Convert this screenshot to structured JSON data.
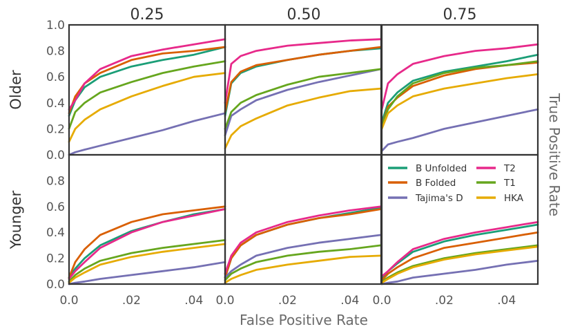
{
  "chart_data": {
    "type": "line",
    "xlabel": "False Positive Rate",
    "ylabel": "True Positive Rate",
    "column_titles": [
      "0.25",
      "0.50",
      "0.75"
    ],
    "row_labels": [
      "Older",
      "Younger"
    ],
    "xlim": [
      0,
      0.05
    ],
    "ylim": [
      0,
      1.0
    ],
    "x_ticks": [
      "0.0",
      ".02",
      ".04"
    ],
    "y_ticks_top": [
      "0.0",
      "0.2",
      "0.4",
      "0.6",
      "0.8",
      "1.0"
    ],
    "y_ticks_bottom": [
      "0.0",
      "0.2",
      "0.4",
      "0.6",
      "0.8"
    ],
    "grid": false,
    "legend_position": "bottom-right panel, top",
    "series_styles": [
      {
        "name": "B Unfolded",
        "color": "#1b9e77"
      },
      {
        "name": "B Folded",
        "color": "#d95f02"
      },
      {
        "name": "Tajima's D",
        "color": "#7570b3"
      },
      {
        "name": "T2",
        "color": "#e7298a"
      },
      {
        "name": "T1",
        "color": "#66a61e"
      },
      {
        "name": "HKA",
        "color": "#e6ab02"
      }
    ],
    "panels": [
      {
        "row": "Older",
        "col": "0.25",
        "series": [
          {
            "name": "B Unfolded",
            "x": [
              0,
              0.002,
              0.005,
              0.01,
              0.02,
              0.03,
              0.04,
              0.05
            ],
            "y": [
              0.3,
              0.42,
              0.52,
              0.6,
              0.68,
              0.73,
              0.77,
              0.83
            ]
          },
          {
            "name": "B Folded",
            "x": [
              0,
              0.002,
              0.005,
              0.01,
              0.02,
              0.03,
              0.04,
              0.05
            ],
            "y": [
              0.32,
              0.45,
              0.55,
              0.63,
              0.73,
              0.78,
              0.8,
              0.83
            ]
          },
          {
            "name": "Tajima's D",
            "x": [
              0,
              0.002,
              0.005,
              0.01,
              0.02,
              0.03,
              0.04,
              0.05
            ],
            "y": [
              0.0,
              0.02,
              0.04,
              0.07,
              0.13,
              0.19,
              0.26,
              0.32
            ]
          },
          {
            "name": "T2",
            "x": [
              0,
              0.002,
              0.005,
              0.01,
              0.02,
              0.03,
              0.04,
              0.05
            ],
            "y": [
              0.35,
              0.42,
              0.55,
              0.66,
              0.76,
              0.81,
              0.85,
              0.89
            ]
          },
          {
            "name": "T1",
            "x": [
              0,
              0.002,
              0.005,
              0.01,
              0.02,
              0.03,
              0.04,
              0.05
            ],
            "y": [
              0.2,
              0.33,
              0.4,
              0.48,
              0.56,
              0.63,
              0.68,
              0.72
            ]
          },
          {
            "name": "HKA",
            "x": [
              0,
              0.002,
              0.005,
              0.01,
              0.02,
              0.03,
              0.04,
              0.05
            ],
            "y": [
              0.1,
              0.2,
              0.27,
              0.35,
              0.45,
              0.53,
              0.6,
              0.63
            ]
          }
        ]
      },
      {
        "row": "Older",
        "col": "0.50",
        "series": [
          {
            "name": "B Unfolded",
            "x": [
              0,
              0.002,
              0.005,
              0.01,
              0.02,
              0.03,
              0.04,
              0.05
            ],
            "y": [
              0.3,
              0.55,
              0.63,
              0.68,
              0.73,
              0.77,
              0.8,
              0.82
            ]
          },
          {
            "name": "B Folded",
            "x": [
              0,
              0.002,
              0.005,
              0.01,
              0.02,
              0.03,
              0.04,
              0.05
            ],
            "y": [
              0.33,
              0.56,
              0.64,
              0.69,
              0.73,
              0.77,
              0.8,
              0.83
            ]
          },
          {
            "name": "Tajima's D",
            "x": [
              0,
              0.002,
              0.005,
              0.01,
              0.02,
              0.03,
              0.04,
              0.05
            ],
            "y": [
              0.15,
              0.3,
              0.35,
              0.42,
              0.5,
              0.56,
              0.61,
              0.66
            ]
          },
          {
            "name": "T2",
            "x": [
              0,
              0.002,
              0.005,
              0.01,
              0.02,
              0.03,
              0.04,
              0.05
            ],
            "y": [
              0.4,
              0.7,
              0.76,
              0.8,
              0.84,
              0.86,
              0.88,
              0.89
            ]
          },
          {
            "name": "T1",
            "x": [
              0,
              0.002,
              0.005,
              0.01,
              0.02,
              0.03,
              0.04,
              0.05
            ],
            "y": [
              0.2,
              0.33,
              0.4,
              0.46,
              0.54,
              0.6,
              0.63,
              0.66
            ]
          },
          {
            "name": "HKA",
            "x": [
              0,
              0.002,
              0.005,
              0.01,
              0.02,
              0.03,
              0.04,
              0.05
            ],
            "y": [
              0.05,
              0.15,
              0.22,
              0.28,
              0.38,
              0.44,
              0.49,
              0.51
            ]
          }
        ]
      },
      {
        "row": "Older",
        "col": "0.75",
        "series": [
          {
            "name": "B Unfolded",
            "x": [
              0,
              0.002,
              0.005,
              0.01,
              0.02,
              0.03,
              0.04,
              0.05
            ],
            "y": [
              0.25,
              0.4,
              0.48,
              0.57,
              0.64,
              0.68,
              0.72,
              0.77
            ]
          },
          {
            "name": "B Folded",
            "x": [
              0,
              0.002,
              0.005,
              0.01,
              0.02,
              0.03,
              0.04,
              0.05
            ],
            "y": [
              0.22,
              0.37,
              0.44,
              0.53,
              0.61,
              0.66,
              0.69,
              0.71
            ]
          },
          {
            "name": "Tajima's D",
            "x": [
              0,
              0.002,
              0.005,
              0.01,
              0.02,
              0.03,
              0.04,
              0.05
            ],
            "y": [
              0.03,
              0.08,
              0.1,
              0.13,
              0.2,
              0.25,
              0.3,
              0.35
            ]
          },
          {
            "name": "T2",
            "x": [
              0,
              0.002,
              0.005,
              0.01,
              0.02,
              0.03,
              0.04,
              0.05
            ],
            "y": [
              0.35,
              0.55,
              0.62,
              0.7,
              0.76,
              0.8,
              0.82,
              0.85
            ]
          },
          {
            "name": "T1",
            "x": [
              0,
              0.002,
              0.005,
              0.01,
              0.02,
              0.03,
              0.04,
              0.05
            ],
            "y": [
              0.22,
              0.35,
              0.45,
              0.55,
              0.63,
              0.67,
              0.69,
              0.72
            ]
          },
          {
            "name": "HKA",
            "x": [
              0,
              0.002,
              0.005,
              0.01,
              0.02,
              0.03,
              0.04,
              0.05
            ],
            "y": [
              0.2,
              0.32,
              0.38,
              0.45,
              0.51,
              0.55,
              0.59,
              0.62
            ]
          }
        ]
      },
      {
        "row": "Younger",
        "col": "0.25",
        "series": [
          {
            "name": "B Unfolded",
            "x": [
              0,
              0.002,
              0.005,
              0.01,
              0.02,
              0.03,
              0.04,
              0.05
            ],
            "y": [
              0.05,
              0.12,
              0.2,
              0.3,
              0.41,
              0.48,
              0.54,
              0.58
            ]
          },
          {
            "name": "B Folded",
            "x": [
              0,
              0.002,
              0.005,
              0.01,
              0.02,
              0.03,
              0.04,
              0.05
            ],
            "y": [
              0.05,
              0.17,
              0.27,
              0.38,
              0.48,
              0.54,
              0.57,
              0.6
            ]
          },
          {
            "name": "Tajima's D",
            "x": [
              0,
              0.002,
              0.005,
              0.01,
              0.02,
              0.03,
              0.04,
              0.05
            ],
            "y": [
              0.0,
              0.01,
              0.02,
              0.04,
              0.07,
              0.1,
              0.13,
              0.17
            ]
          },
          {
            "name": "T2",
            "x": [
              0,
              0.002,
              0.005,
              0.01,
              0.02,
              0.03,
              0.04,
              0.05
            ],
            "y": [
              0.04,
              0.1,
              0.17,
              0.28,
              0.4,
              0.48,
              0.53,
              0.58
            ]
          },
          {
            "name": "T1",
            "x": [
              0,
              0.002,
              0.005,
              0.01,
              0.02,
              0.03,
              0.04,
              0.05
            ],
            "y": [
              0.02,
              0.07,
              0.12,
              0.18,
              0.24,
              0.28,
              0.31,
              0.34
            ]
          },
          {
            "name": "HKA",
            "x": [
              0,
              0.002,
              0.005,
              0.01,
              0.02,
              0.03,
              0.04,
              0.05
            ],
            "y": [
              0.01,
              0.05,
              0.09,
              0.15,
              0.21,
              0.25,
              0.28,
              0.31
            ]
          }
        ]
      },
      {
        "row": "Younger",
        "col": "0.50",
        "series": [
          {
            "name": "B Unfolded",
            "x": [
              0,
              0.002,
              0.005,
              0.01,
              0.02,
              0.03,
              0.04,
              0.05
            ],
            "y": [
              0.05,
              0.2,
              0.3,
              0.38,
              0.46,
              0.51,
              0.55,
              0.59
            ]
          },
          {
            "name": "B Folded",
            "x": [
              0,
              0.002,
              0.005,
              0.01,
              0.02,
              0.03,
              0.04,
              0.05
            ],
            "y": [
              0.05,
              0.2,
              0.3,
              0.38,
              0.46,
              0.51,
              0.54,
              0.58
            ]
          },
          {
            "name": "Tajima's D",
            "x": [
              0,
              0.002,
              0.005,
              0.01,
              0.02,
              0.03,
              0.04,
              0.05
            ],
            "y": [
              0.05,
              0.1,
              0.15,
              0.22,
              0.28,
              0.32,
              0.35,
              0.38
            ]
          },
          {
            "name": "T2",
            "x": [
              0,
              0.002,
              0.005,
              0.01,
              0.02,
              0.03,
              0.04,
              0.05
            ],
            "y": [
              0.08,
              0.22,
              0.32,
              0.4,
              0.48,
              0.53,
              0.57,
              0.6
            ]
          },
          {
            "name": "T1",
            "x": [
              0,
              0.002,
              0.005,
              0.01,
              0.02,
              0.03,
              0.04,
              0.05
            ],
            "y": [
              0.03,
              0.08,
              0.12,
              0.17,
              0.22,
              0.25,
              0.27,
              0.3
            ]
          },
          {
            "name": "HKA",
            "x": [
              0,
              0.002,
              0.005,
              0.01,
              0.02,
              0.03,
              0.04,
              0.05
            ],
            "y": [
              0.01,
              0.04,
              0.07,
              0.11,
              0.15,
              0.18,
              0.21,
              0.22
            ]
          }
        ]
      },
      {
        "row": "Younger",
        "col": "0.75",
        "series": [
          {
            "name": "B Unfolded",
            "x": [
              0,
              0.002,
              0.005,
              0.01,
              0.02,
              0.03,
              0.04,
              0.05
            ],
            "y": [
              0.05,
              0.1,
              0.16,
              0.25,
              0.33,
              0.38,
              0.42,
              0.46
            ]
          },
          {
            "name": "B Folded",
            "x": [
              0,
              0.002,
              0.005,
              0.01,
              0.02,
              0.03,
              0.04,
              0.05
            ],
            "y": [
              0.03,
              0.08,
              0.13,
              0.2,
              0.28,
              0.32,
              0.36,
              0.4
            ]
          },
          {
            "name": "Tajima's D",
            "x": [
              0,
              0.002,
              0.005,
              0.01,
              0.02,
              0.03,
              0.04,
              0.05
            ],
            "y": [
              0.0,
              0.01,
              0.02,
              0.05,
              0.08,
              0.11,
              0.15,
              0.18
            ]
          },
          {
            "name": "T2",
            "x": [
              0,
              0.002,
              0.005,
              0.01,
              0.02,
              0.03,
              0.04,
              0.05
            ],
            "y": [
              0.06,
              0.1,
              0.17,
              0.27,
              0.35,
              0.4,
              0.44,
              0.48
            ]
          },
          {
            "name": "T1",
            "x": [
              0,
              0.002,
              0.005,
              0.01,
              0.02,
              0.03,
              0.04,
              0.05
            ],
            "y": [
              0.02,
              0.05,
              0.09,
              0.14,
              0.2,
              0.24,
              0.27,
              0.3
            ]
          },
          {
            "name": "HKA",
            "x": [
              0,
              0.002,
              0.005,
              0.01,
              0.02,
              0.03,
              0.04,
              0.05
            ],
            "y": [
              0.01,
              0.04,
              0.08,
              0.13,
              0.19,
              0.23,
              0.26,
              0.29
            ]
          }
        ]
      }
    ]
  }
}
